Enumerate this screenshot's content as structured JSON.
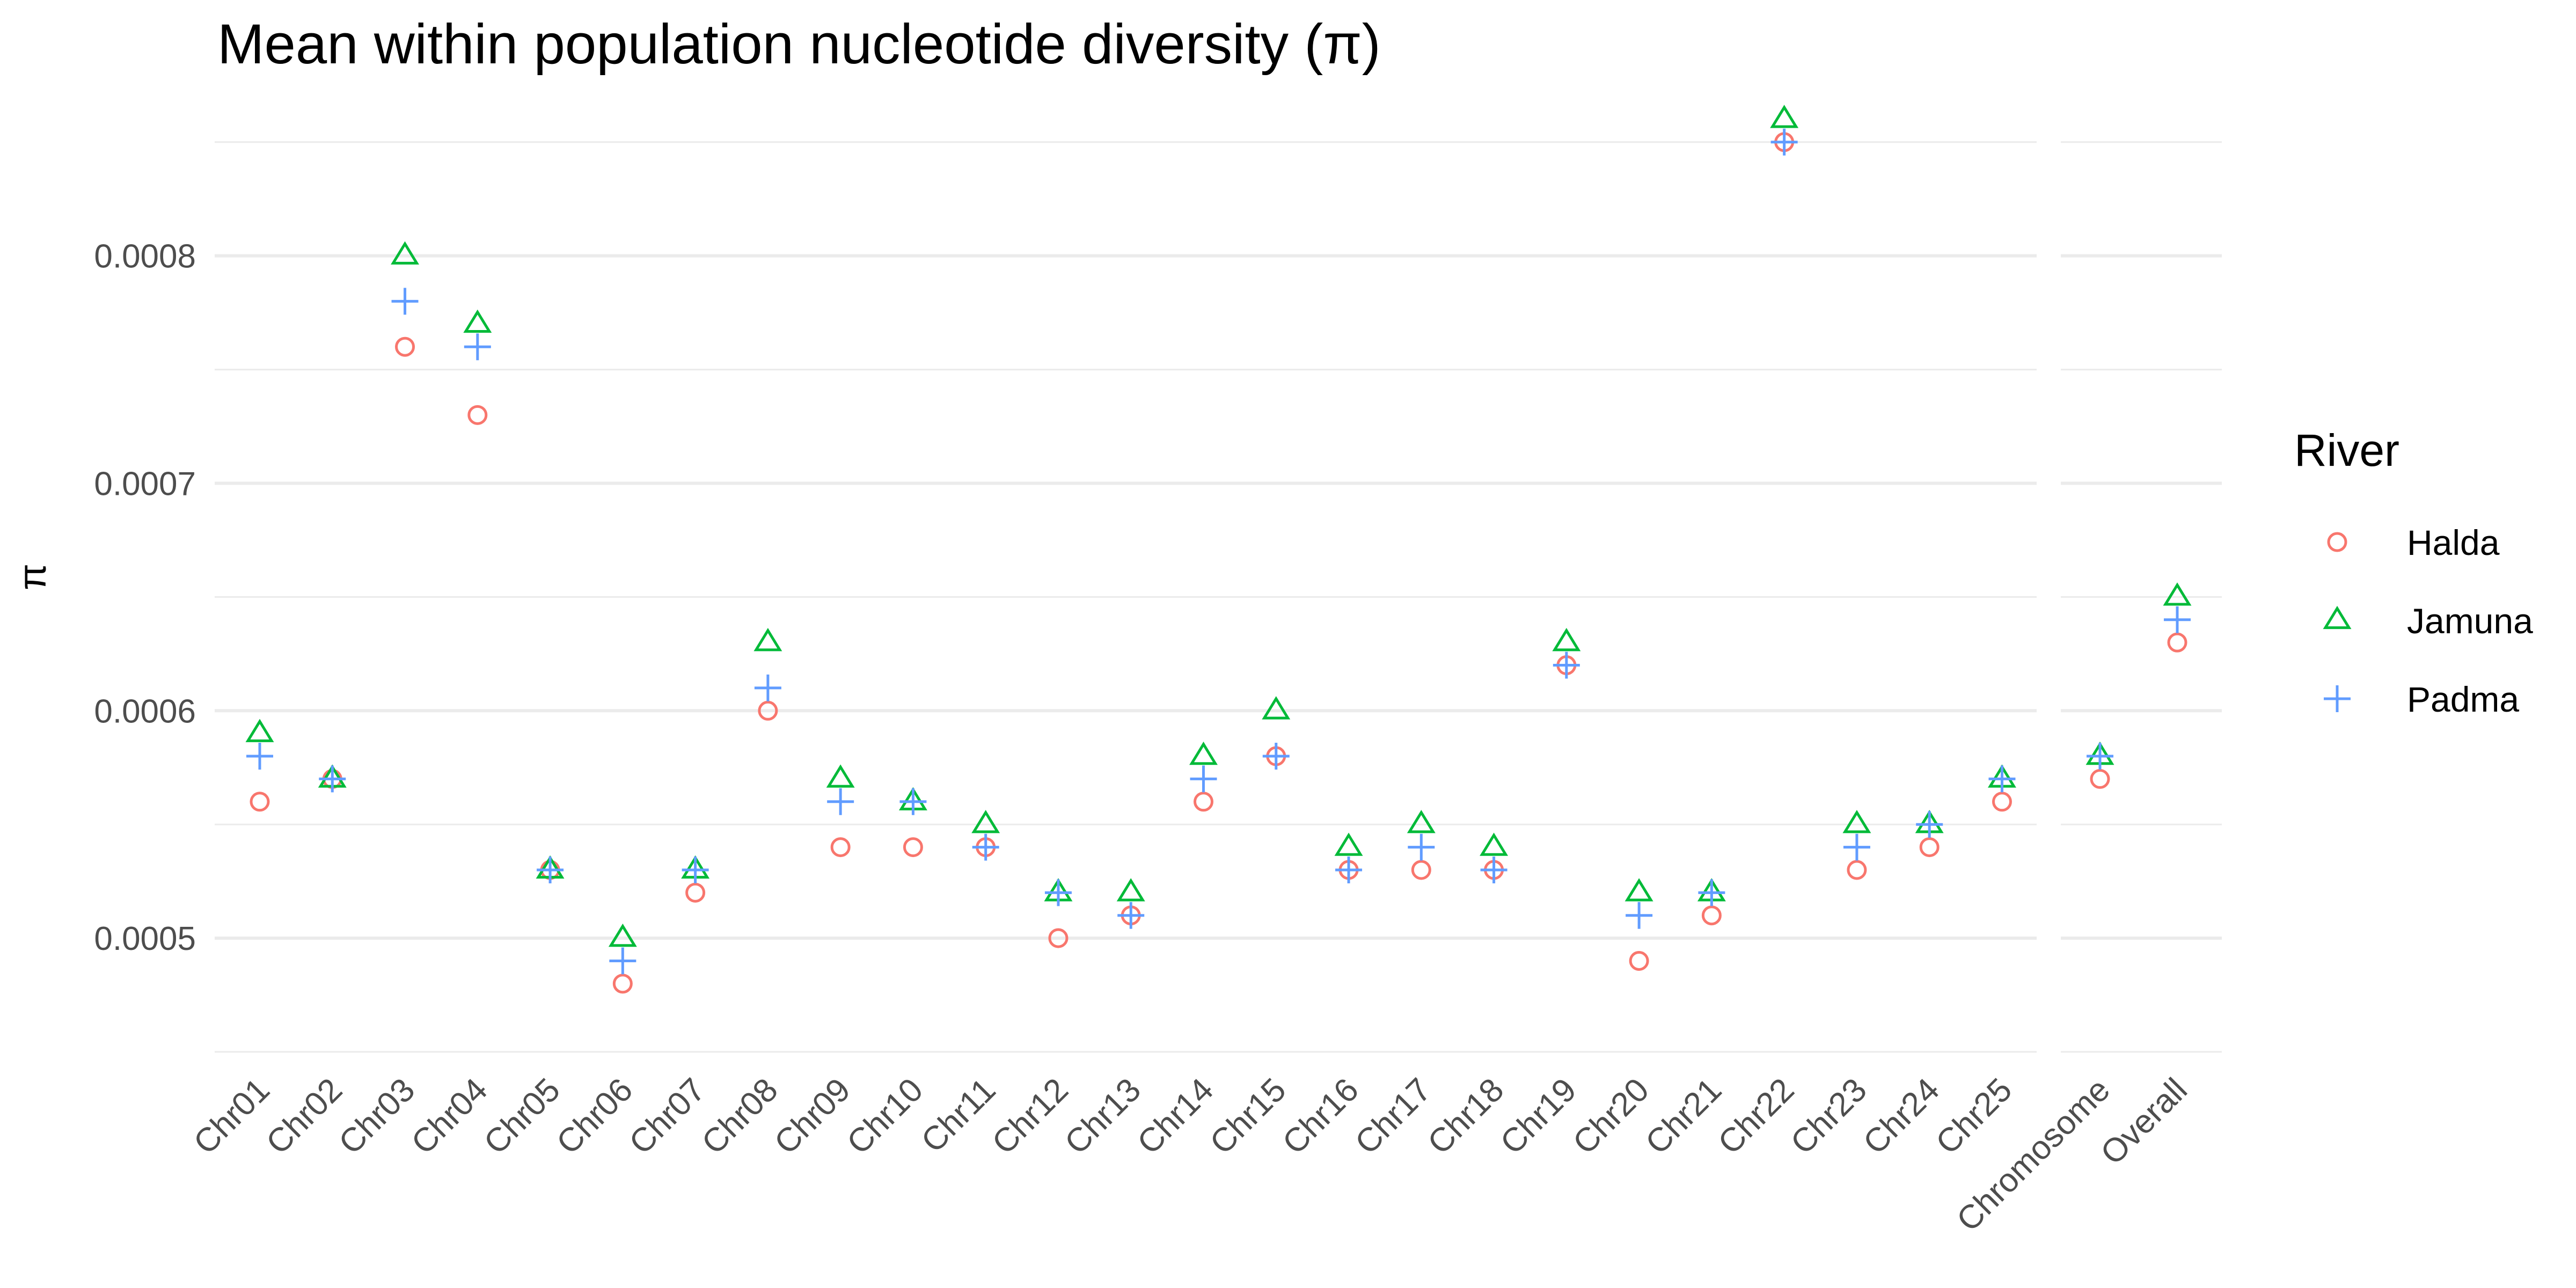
{
  "chart_data": {
    "type": "scatter",
    "title": "Mean within population nucleotide diversity (π)",
    "xlabel": "",
    "ylabel": "π",
    "ylim": [
      0.00045,
      0.00087
    ],
    "y_ticks": [
      "0.0005",
      "0.0006",
      "0.0007",
      "0.0008"
    ],
    "grid": true,
    "legend_title": "River",
    "legend_position": "right",
    "panels": [
      {
        "categories": [
          "Chr01",
          "Chr02",
          "Chr03",
          "Chr04",
          "Chr05",
          "Chr06",
          "Chr07",
          "Chr08",
          "Chr09",
          "Chr10",
          "Chr11",
          "Chr12",
          "Chr13",
          "Chr14",
          "Chr15",
          "Chr16",
          "Chr17",
          "Chr18",
          "Chr19",
          "Chr20",
          "Chr21",
          "Chr22",
          "Chr23",
          "Chr24",
          "Chr25"
        ]
      },
      {
        "categories": [
          "Chromosome",
          "Overall"
        ]
      }
    ],
    "series": [
      {
        "name": "Halda",
        "shape": "circle",
        "color": "#F8766D",
        "values": [
          0.00056,
          0.00057,
          0.00076,
          0.00073,
          0.00053,
          0.00048,
          0.00052,
          0.0006,
          0.00054,
          0.00054,
          0.00054,
          0.0005,
          0.00051,
          0.00056,
          0.00058,
          0.00053,
          0.00053,
          0.00053,
          0.00062,
          0.00049,
          0.00051,
          0.00085,
          0.00053,
          0.00054,
          0.00056,
          0.00057,
          0.00063
        ]
      },
      {
        "name": "Jamuna",
        "shape": "triangle",
        "color": "#00BA38",
        "values": [
          0.00059,
          0.00057,
          0.0008,
          0.00077,
          0.00053,
          0.0005,
          0.00053,
          0.00063,
          0.00057,
          0.00056,
          0.00055,
          0.00052,
          0.00052,
          0.00058,
          0.0006,
          0.00054,
          0.00055,
          0.00054,
          0.00063,
          0.00052,
          0.00052,
          0.00086,
          0.00055,
          0.00055,
          0.00057,
          0.00058,
          0.00065
        ]
      },
      {
        "name": "Padma",
        "shape": "plus",
        "color": "#619CFF",
        "values": [
          0.00058,
          0.00057,
          0.00078,
          0.00076,
          0.00053,
          0.00049,
          0.00053,
          0.00061,
          0.00056,
          0.00056,
          0.00054,
          0.00052,
          0.00051,
          0.00057,
          0.00058,
          0.00053,
          0.00054,
          0.00053,
          0.00062,
          0.00051,
          0.00052,
          0.00085,
          0.00054,
          0.00055,
          0.00057,
          0.00058,
          0.00064
        ]
      }
    ]
  }
}
